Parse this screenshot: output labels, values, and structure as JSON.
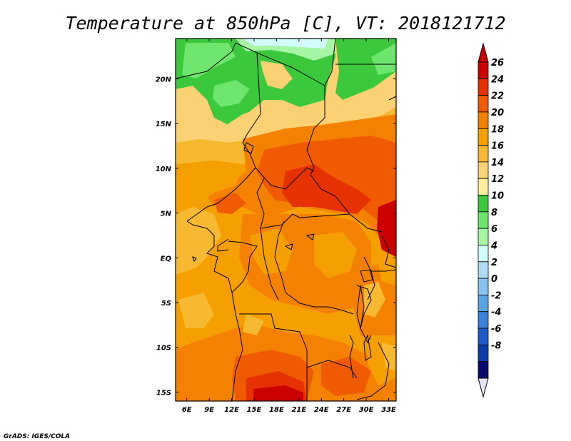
{
  "title": "Temperature at 850hPa [C], VT: 2018121712",
  "credit": "GrADS: IGES/COLA",
  "map": {
    "lon_range": [
      4.5,
      34
    ],
    "lat_range": [
      -16,
      24.5
    ],
    "lon_ticks": [
      "6E",
      "9E",
      "12E",
      "15E",
      "18E",
      "21E",
      "24E",
      "27E",
      "30E",
      "33E"
    ],
    "lon_tick_values": [
      6,
      9,
      12,
      15,
      18,
      21,
      24,
      27,
      30,
      33
    ],
    "lat_ticks": [
      "20N",
      "15N",
      "10N",
      "5N",
      "EQ",
      "5S",
      "10S",
      "15S"
    ],
    "lat_tick_values": [
      20,
      15,
      10,
      5,
      0,
      -5,
      -10,
      -15
    ]
  },
  "colorbar": {
    "labels": [
      "26",
      "24",
      "22",
      "20",
      "18",
      "16",
      "14",
      "12",
      "10",
      "8",
      "6",
      "4",
      "2",
      "0",
      "-2",
      "-4",
      "-6",
      "-8"
    ],
    "colors_top_to_bottom": [
      "#cc0000",
      "#e63200",
      "#f05a00",
      "#f48200",
      "#f5a000",
      "#f8b932",
      "#fad273",
      "#fcf0a0",
      "#3cc83c",
      "#6ee66e",
      "#a5f5a5",
      "#d2fcfc",
      "#afdcf5",
      "#87c3f0",
      "#5aa5e6",
      "#3c82dc",
      "#1e5ac8",
      "#0a3caa",
      "#0a0a6e"
    ],
    "over_color": "#cc0000",
    "under_color": "#e6e6fa"
  }
}
